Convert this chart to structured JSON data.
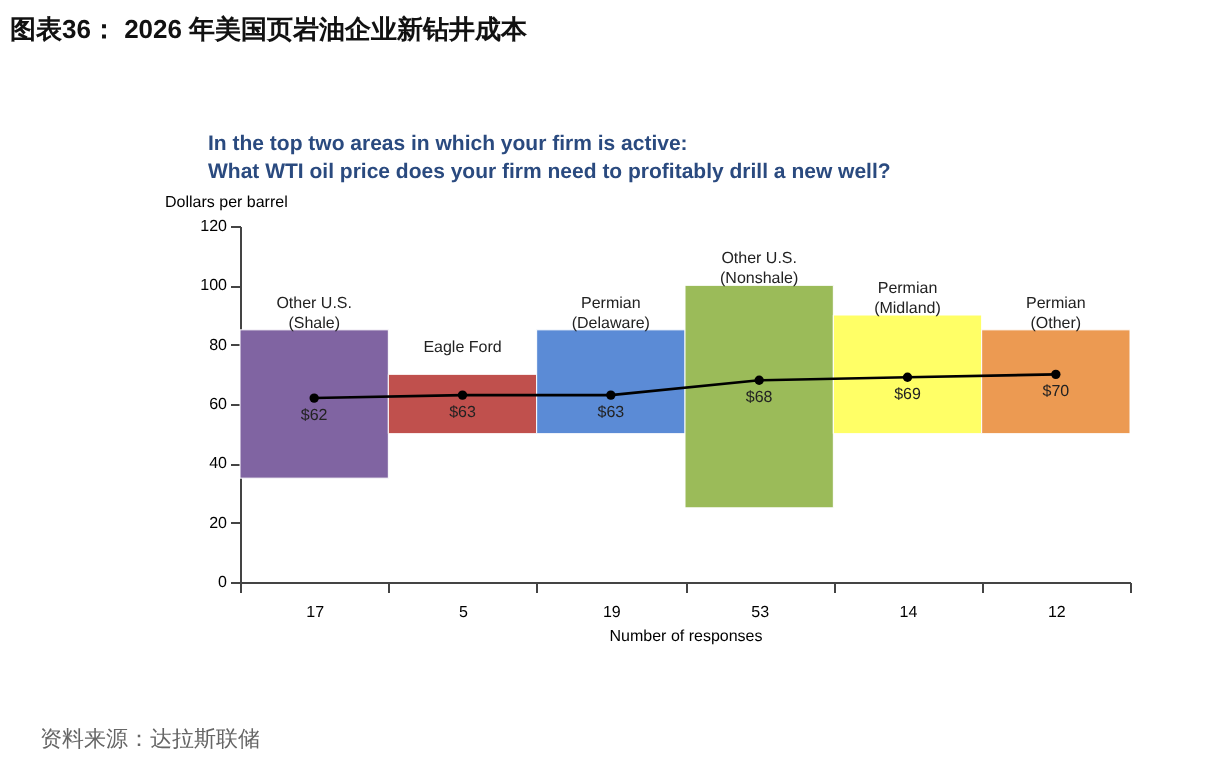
{
  "chart_data": {
    "type": "bar",
    "title": "图表36： 2026 年美国页岩油企业新钻井成本",
    "subtitle": "In the top two areas in which your firm is active:\nWhat WTI oil price does your firm need to profitably drill a new well?",
    "ylabel": "Dollars per barrel",
    "xlabel": "Number of responses",
    "categories": [
      "17",
      "5",
      "19",
      "53",
      "14",
      "12"
    ],
    "series": [
      {
        "colors": [
          "#8064a2",
          "#c0504d",
          "#5b8bd6",
          "#9bbb59",
          "#ffff66",
          "#ec9a52"
        ],
        "base": [
          35,
          50,
          50,
          25,
          50,
          50
        ],
        "values": [
          50,
          20,
          35,
          75,
          40,
          35
        ]
      },
      {
        "type": "line",
        "color": "#000000",
        "marker": "circle",
        "values": [
          62,
          63,
          63,
          68,
          69,
          70
        ],
        "value_labels": [
          "$62",
          "$63",
          "$63",
          "$68",
          "$69",
          "$70"
        ]
      }
    ],
    "ylim": [
      0,
      120
    ],
    "yticks": [
      0,
      20,
      40,
      60,
      80,
      100,
      120
    ],
    "grid": false,
    "annotations": [
      {
        "text": "Other U.S.\n(Shale)",
        "x": "17",
        "y": 85
      },
      {
        "text": "Eagle Ford",
        "x": "5",
        "y": 70
      },
      {
        "text": "Permian\n(Delaware)",
        "x": "19",
        "y": 85
      },
      {
        "text": "Other U.S.\n(Nonshale)",
        "x": "53",
        "y": 100
      },
      {
        "text": "Permian\n(Midland)",
        "x": "14",
        "y": 90
      },
      {
        "text": "Permian\n(Other)",
        "x": "12",
        "y": 85
      },
      "资料来源：达拉斯联储"
    ]
  }
}
